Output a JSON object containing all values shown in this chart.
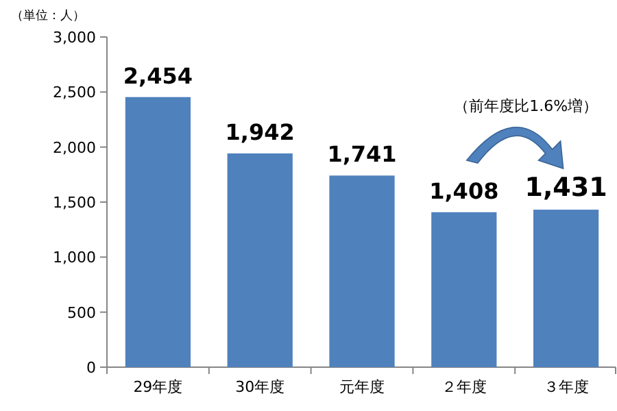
{
  "chart_data": {
    "type": "bar",
    "categories": [
      "29年度",
      "30年度",
      "元年度",
      "２年度",
      "３年度"
    ],
    "values": [
      2454,
      1942,
      1741,
      1408,
      1431
    ],
    "value_labels": [
      "2,454",
      "1,942",
      "1,741",
      "1,408",
      "1,431"
    ],
    "color": "#4f81bd",
    "ylim": [
      0,
      3000
    ],
    "yticks": [
      0,
      500,
      {
        "value": 1000,
        "label": "1,000"
      },
      {
        "value": 1500,
        "label": "1,500"
      },
      {
        "value": 2000,
        "label": "2,000"
      },
      {
        "value": 2500,
        "label": "2,500"
      },
      {
        "value": 3000,
        "label": "3,000"
      }
    ],
    "annotations": [
      "（単位：人）",
      "（前年度比1.6%増）"
    ]
  }
}
